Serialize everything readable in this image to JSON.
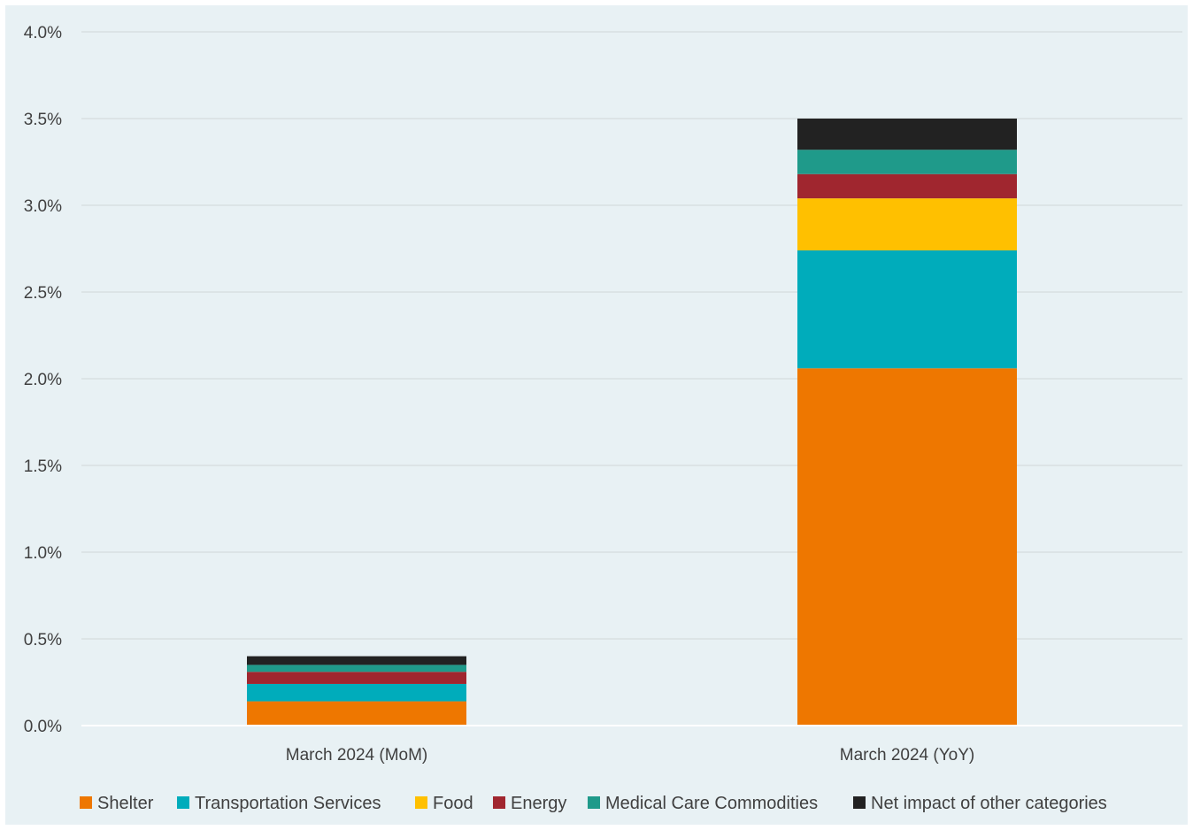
{
  "chart_data": {
    "type": "bar",
    "stacked": true,
    "categories": [
      "March 2024 (MoM)",
      "March 2024 (YoY)"
    ],
    "ylim": [
      0,
      4.0
    ],
    "yticks": [
      "0.0%",
      "0.5%",
      "1.0%",
      "1.5%",
      "2.0%",
      "2.5%",
      "3.0%",
      "3.5%",
      "4.0%"
    ],
    "ytick_values": [
      0,
      0.5,
      1.0,
      1.5,
      2.0,
      2.5,
      3.0,
      3.5,
      4.0
    ],
    "grid": true,
    "legend_position": "bottom",
    "series": [
      {
        "name": "Shelter",
        "color": "#ee7700",
        "values": [
          0.14,
          2.06
        ]
      },
      {
        "name": "Transportation Services",
        "color": "#00acbb",
        "values": [
          0.1,
          0.68
        ]
      },
      {
        "name": "Food",
        "color": "#ffc000",
        "values": [
          0.0,
          0.3
        ]
      },
      {
        "name": "Energy",
        "color": "#a0262f",
        "values": [
          0.07,
          0.14
        ]
      },
      {
        "name": "Medical Care Commodities",
        "color": "#1f9a8a",
        "values": [
          0.04,
          0.14
        ]
      },
      {
        "name": "Net impact of other categories",
        "color": "#222222",
        "values": [
          0.05,
          0.18
        ]
      }
    ]
  }
}
